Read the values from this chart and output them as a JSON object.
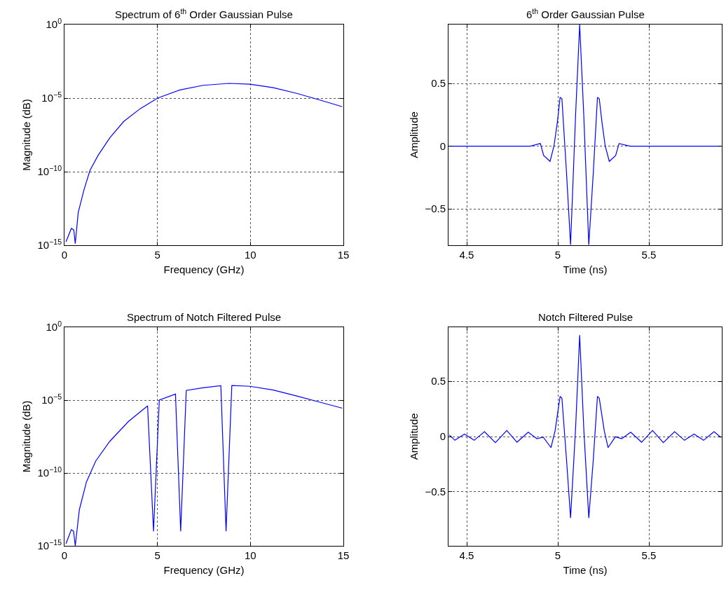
{
  "chart_data": [
    {
      "type": "line",
      "title": "Spectrum of 6$^{th}$ Order Gaussian Pulse",
      "xlabel": "Frequency (GHz)",
      "ylabel": "Magnitude (dB)",
      "log": "y",
      "grid": true,
      "color": "#0000ff",
      "line_style": "solid",
      "x": [
        0.08,
        0.37,
        0.5,
        0.58,
        0.74,
        1.06,
        1.37,
        1.81,
        2.44,
        3.19,
        4.07,
        5.01,
        6.21,
        7.46,
        8.84,
        9.97,
        11.23,
        12.49,
        13.74,
        14.94
      ],
      "values": [
        1.7e-15,
        1.4e-14,
        1.1e-14,
        1.3e-15,
        1.7e-13,
        6.5e-12,
        1.2e-10,
        1.3e-09,
        2e-08,
        2.6e-07,
        1.9e-06,
        1e-05,
        3.6e-05,
        7.4e-05,
        0.0001,
        8.9e-05,
        5.1e-05,
        2.1e-05,
        7.4e-06,
        2.6e-06
      ],
      "xlim": [
        0,
        15
      ],
      "xticks": [
        0,
        5,
        10,
        15
      ],
      "ylim": [
        1e-15,
        1
      ],
      "yticks": [
        {
          "value": 1e-15,
          "label": "10$^{−15}$"
        },
        {
          "value": 1e-10,
          "label": "10$^{−10}$"
        },
        {
          "value": 1e-05,
          "label": "10$^{−5}$"
        },
        {
          "value": 1,
          "label": "10$^{0}$"
        }
      ]
    },
    {
      "type": "line",
      "title": "6$^{th}$ Order Gaussian Pulse",
      "xlabel": "Time (ns)",
      "ylabel": "Amplitude",
      "grid": true,
      "color": "#0000ff",
      "line_style": "solid",
      "x": [
        4.404,
        4.848,
        4.904,
        4.9225,
        4.9575,
        4.979,
        4.9975,
        5.0125,
        5.0225,
        5.0475,
        5.07,
        5.0975,
        5.12,
        5.1425,
        5.17,
        5.195,
        5.2175,
        5.2275,
        5.2425,
        5.26,
        5.2825,
        5.3175,
        5.33625,
        5.3975,
        5.895
      ],
      "values": [
        0,
        0,
        0.021,
        -0.074,
        -0.121,
        0.002,
        0.19,
        0.389,
        0.379,
        -0.206,
        -0.787,
        0.247,
        0.97,
        0.247,
        -0.787,
        -0.206,
        0.389,
        0.379,
        0.19,
        0.002,
        -0.121,
        -0.074,
        0.021,
        0,
        0
      ],
      "xlim": [
        4.4,
        5.9
      ],
      "xticks": [
        4.5,
        5,
        5.5
      ],
      "ylim": [
        -0.79,
        0.97
      ],
      "yticks": [
        {
          "value": -0.5,
          "label": "−0.5"
        },
        0,
        0.5
      ]
    },
    {
      "type": "line",
      "title": "Spectrum of Notch Filtered Pulse",
      "xlabel": "Frequency (GHz)",
      "ylabel": "Magnitude (dB)",
      "log": "y",
      "grid": true,
      "color": "#0000ff",
      "line_style": "solid",
      "x": [
        0.08,
        0.37,
        0.49,
        0.58,
        0.8,
        1.18,
        1.68,
        2.44,
        3.44,
        4.47,
        4.79,
        5.1,
        5.97,
        6.25,
        6.55,
        7.46,
        8.41,
        8.69,
        9.0,
        9.97,
        11.23,
        12.49,
        13.74,
        14.94
      ],
      "values": [
        1.4e-15,
        1.3e-14,
        1e-14,
        1e-15,
        3e-13,
        2.4e-11,
        6.6e-10,
        1.5e-08,
        3.4e-07,
        4e-06,
        1e-14,
        1e-05,
        2.6e-05,
        1e-14,
        4.6e-05,
        7.1e-05,
        9.8e-05,
        1e-14,
        0.0001,
        8.9e-05,
        4.9e-05,
        1.9e-05,
        7.2e-06,
        2.8e-06
      ],
      "xlim": [
        0,
        15
      ],
      "xticks": [
        0,
        5,
        10,
        15
      ],
      "ylim": [
        1e-15,
        1
      ],
      "yticks": [
        {
          "value": 1e-15,
          "label": "10$^{−15}$"
        },
        {
          "value": 1e-10,
          "label": "10$^{−10}$"
        },
        {
          "value": 1e-05,
          "label": "10$^{−5}$"
        },
        {
          "value": 1,
          "label": "10$^{0}$"
        }
      ]
    },
    {
      "type": "line",
      "title": "Notch Filtered Pulse",
      "xlabel": "Time (ns)",
      "ylabel": "Amplitude",
      "grid": true,
      "color": "#0000ff",
      "line_style": "solid",
      "x": [
        4.404,
        4.435,
        4.4875,
        4.541,
        4.5975,
        4.6575,
        4.72,
        4.776,
        4.8375,
        4.885,
        4.92,
        4.9625,
        4.985,
        5.0125,
        5.0225,
        5.0475,
        5.07,
        5.0975,
        5.12,
        5.1425,
        5.17,
        5.195,
        5.2175,
        5.2275,
        5.255,
        5.276,
        5.316,
        5.351,
        5.4,
        5.46,
        5.52,
        5.579,
        5.641,
        5.695,
        5.7475,
        5.8,
        5.8575,
        5.895
      ],
      "values": [
        0.015,
        -0.034,
        0.023,
        -0.034,
        0.044,
        -0.055,
        0.055,
        -0.051,
        0.04,
        -0.019,
        -0.006,
        -0.1,
        0.051,
        0.364,
        0.347,
        -0.203,
        -0.737,
        0.072,
        0.919,
        0.072,
        -0.737,
        -0.203,
        0.364,
        0.347,
        0.051,
        -0.1,
        -0.002,
        -0.019,
        0.04,
        -0.051,
        0.055,
        -0.055,
        0.044,
        -0.034,
        0.023,
        -0.034,
        0.044,
        -0.008
      ],
      "xlim": [
        4.4,
        5.9
      ],
      "xticks": [
        4.5,
        5,
        5.5
      ],
      "ylim": [
        -0.99,
        0.99
      ],
      "yticks": [
        {
          "value": -0.5,
          "label": "−0.5"
        },
        0,
        0.5
      ]
    }
  ]
}
